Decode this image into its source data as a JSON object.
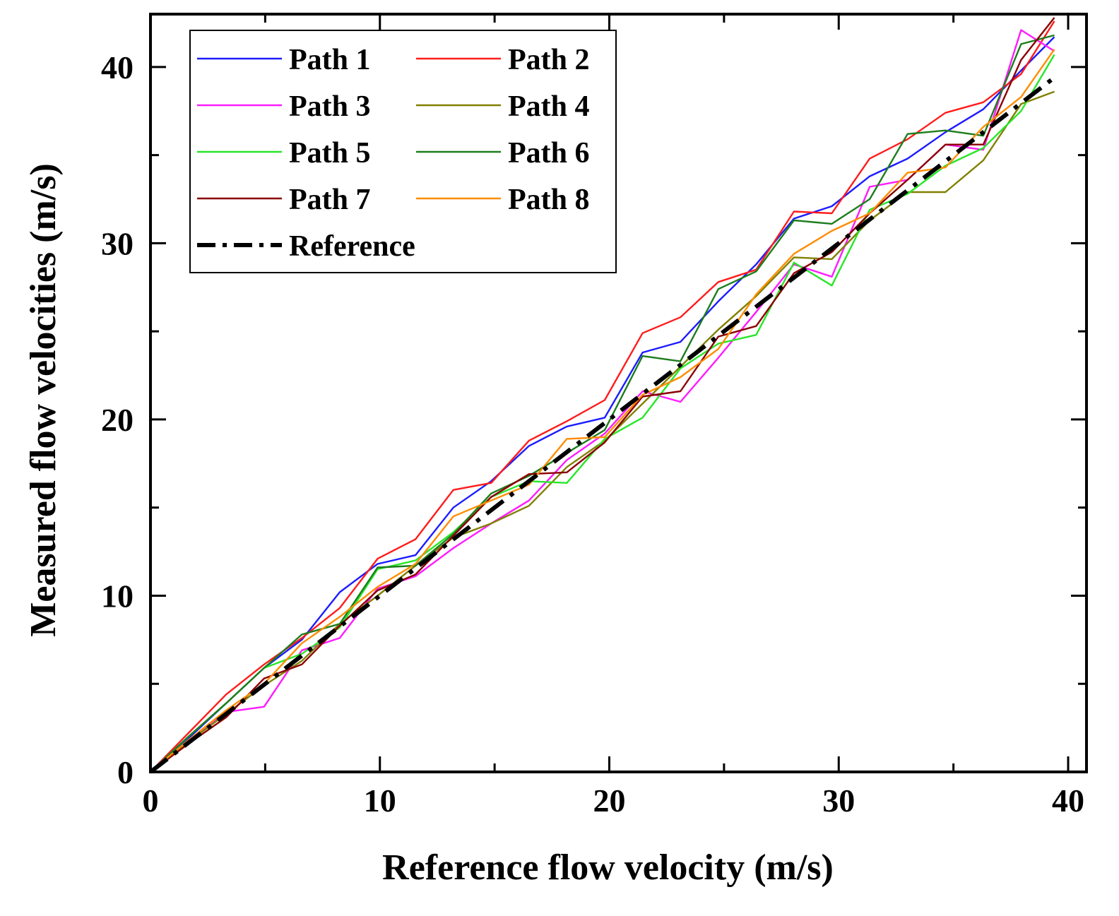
{
  "chart_data": {
    "type": "line",
    "title": "",
    "xlabel": "Reference flow velocity (m/s)",
    "ylabel": "Measured flow velocities (m/s)",
    "xlim": [
      0,
      40.8
    ],
    "ylim": [
      0,
      43
    ],
    "xticks": [
      0,
      10,
      20,
      30,
      40
    ],
    "yticks": [
      0,
      10,
      20,
      30,
      40
    ],
    "x": [
      0,
      1.65,
      3.3,
      4.95,
      6.6,
      8.25,
      9.9,
      11.55,
      13.2,
      14.85,
      16.5,
      18.15,
      19.8,
      21.45,
      23.1,
      24.75,
      26.4,
      28.05,
      29.7,
      31.35,
      33.0,
      34.65,
      36.3,
      37.95,
      39.4
    ],
    "legend_position": "top-left",
    "series": [
      {
        "name": "Path 1",
        "color": "#1c1cff",
        "dash": "solid",
        "values": [
          0,
          1.9,
          3.9,
          5.9,
          7.5,
          10.2,
          11.8,
          12.3,
          15.0,
          16.5,
          18.5,
          19.6,
          20.1,
          23.8,
          24.4,
          26.7,
          28.8,
          31.4,
          32.1,
          33.8,
          34.8,
          36.3,
          37.6,
          39.8,
          41.7
        ]
      },
      {
        "name": "Path 2",
        "color": "#ff1c1c",
        "dash": "solid",
        "values": [
          0,
          2.2,
          4.4,
          6.1,
          7.6,
          9.3,
          12.1,
          13.2,
          16.0,
          16.4,
          18.8,
          19.9,
          21.1,
          24.9,
          25.8,
          27.8,
          28.5,
          31.8,
          31.7,
          34.8,
          35.9,
          37.4,
          38.0,
          39.6,
          42.6
        ]
      },
      {
        "name": "Path 3",
        "color": "#ff1cff",
        "dash": "solid",
        "values": [
          0,
          1.7,
          3.4,
          3.7,
          6.9,
          7.6,
          10.4,
          11.1,
          12.7,
          14.1,
          15.4,
          17.7,
          19.2,
          21.6,
          21.0,
          23.5,
          26.1,
          28.8,
          28.1,
          33.2,
          33.6,
          35.6,
          35.3,
          42.1,
          40.9
        ]
      },
      {
        "name": "Path 4",
        "color": "#808000",
        "dash": "solid",
        "values": [
          0,
          1.7,
          3.3,
          4.9,
          6.3,
          8.4,
          10.0,
          11.7,
          13.3,
          14.1,
          15.1,
          17.3,
          18.8,
          20.9,
          23.0,
          25.1,
          27.0,
          29.2,
          29.1,
          31.3,
          32.9,
          32.9,
          34.7,
          37.9,
          38.6
        ]
      },
      {
        "name": "Path 5",
        "color": "#28e628",
        "dash": "solid",
        "values": [
          0,
          2.0,
          3.9,
          5.9,
          6.7,
          8.2,
          11.5,
          12.0,
          13.6,
          15.6,
          16.5,
          16.4,
          18.9,
          20.1,
          22.9,
          24.3,
          24.8,
          28.9,
          27.6,
          31.9,
          32.8,
          34.4,
          35.4,
          37.5,
          40.7
        ]
      },
      {
        "name": "Path 6",
        "color": "#1c7d1c",
        "dash": "solid",
        "values": [
          0,
          2.0,
          3.9,
          5.9,
          7.8,
          8.4,
          11.6,
          11.7,
          13.5,
          15.8,
          16.8,
          18.1,
          19.4,
          23.6,
          23.3,
          27.4,
          28.4,
          31.3,
          31.1,
          32.5,
          36.2,
          36.4,
          36.1,
          41.3,
          41.8
        ]
      },
      {
        "name": "Path 7",
        "color": "#8b0000",
        "dash": "solid",
        "values": [
          0,
          1.6,
          3.1,
          5.3,
          6.1,
          8.3,
          10.3,
          11.2,
          13.4,
          15.6,
          16.9,
          17.0,
          18.7,
          21.3,
          21.6,
          24.7,
          25.3,
          28.3,
          29.5,
          31.7,
          33.6,
          35.6,
          35.6,
          40.4,
          42.8
        ]
      },
      {
        "name": "Path 8",
        "color": "#ff8c00",
        "dash": "solid",
        "values": [
          0,
          1.8,
          3.5,
          5.0,
          7.3,
          8.8,
          10.5,
          11.8,
          14.5,
          15.4,
          16.3,
          18.9,
          19.0,
          21.4,
          22.4,
          24.0,
          27.1,
          29.4,
          30.7,
          31.7,
          34.0,
          34.3,
          36.6,
          38.3,
          41.0
        ]
      },
      {
        "name": "Reference",
        "color": "#000000",
        "dash": "dashdot",
        "values": [
          0,
          1.65,
          3.3,
          4.95,
          6.6,
          8.25,
          9.9,
          11.55,
          13.2,
          14.85,
          16.5,
          18.15,
          19.8,
          21.45,
          23.1,
          24.75,
          26.4,
          28.05,
          29.7,
          31.35,
          33.0,
          34.65,
          36.3,
          37.95,
          39.4
        ]
      }
    ]
  }
}
